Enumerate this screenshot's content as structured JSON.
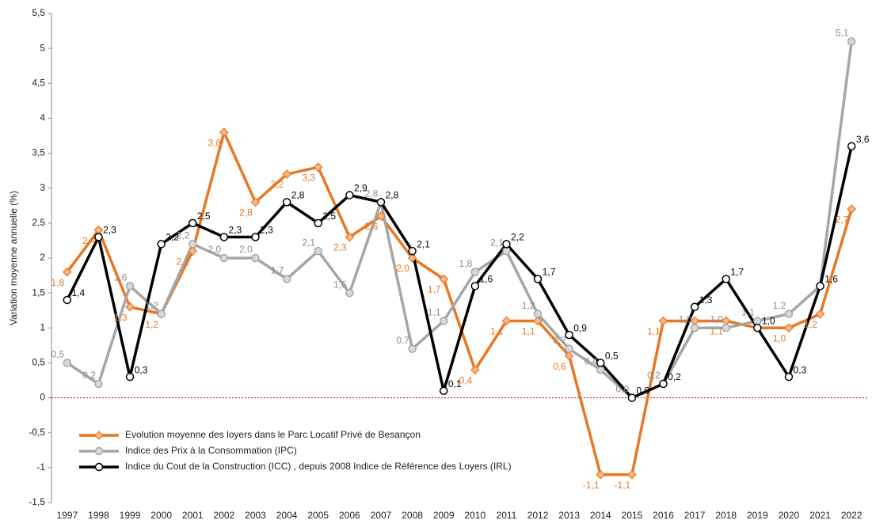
{
  "chart_data": {
    "type": "line",
    "ylabel": "Variation moyenne annuelle (%)",
    "categories": [
      "1997",
      "1998",
      "1999",
      "2000",
      "2001",
      "2002",
      "2003",
      "2004",
      "2005",
      "2006",
      "2007",
      "2008",
      "2009",
      "2010",
      "2011",
      "2012",
      "2013",
      "2014",
      "2015",
      "2016",
      "2017",
      "2018",
      "2019",
      "2020",
      "2021",
      "2022"
    ],
    "ylim": [
      -1.5,
      5.5
    ],
    "yticks": [
      {
        "value": -1.5,
        "label": "-1,5"
      },
      -1,
      {
        "value": -0.5,
        "label": "-0,5"
      },
      0,
      {
        "value": 0.5,
        "label": "0,5"
      },
      1,
      {
        "value": 1.5,
        "label": "1,5"
      },
      2,
      {
        "value": 2.5,
        "label": "2,5"
      },
      3,
      {
        "value": 3.5,
        "label": "3,5"
      },
      4,
      {
        "value": 4.5,
        "label": "4,5"
      },
      5,
      {
        "value": 5.5,
        "label": "5,5"
      }
    ],
    "zero_line_color": "#c00000",
    "series": [
      {
        "name": "Evolution moyenne des loyers dans le Parc Locatif Privé de Besançon",
        "color": "#e87722",
        "marker_fill": "#f9b88a",
        "marker": "diamond",
        "values": [
          1.8,
          2.4,
          1.3,
          1.2,
          2.1,
          3.8,
          2.8,
          3.2,
          3.3,
          2.3,
          2.6,
          2.0,
          1.7,
          0.4,
          1.1,
          1.1,
          0.6,
          -1.1,
          -1.1,
          1.1,
          1.1,
          1.1,
          1.0,
          1.0,
          1.2,
          2.7
        ],
        "value_labels": [
          "1,8",
          "2,4",
          "1,3",
          "1,2",
          "2,1",
          "3,8",
          "2,8",
          "3,2",
          "3,3",
          "2,3",
          "2,6",
          "2,0",
          "1,7",
          "0,4",
          "1,1",
          "1,1",
          "0,6",
          "-1,1",
          "-1,1",
          "1,1",
          null,
          "1,1",
          null,
          "1,0",
          "1,2",
          "2,7"
        ]
      },
      {
        "name": "Indice des Prix à la Consommation (IPC)",
        "color": "#a6a6a6",
        "marker_fill": "#d9d9d9",
        "marker": "circle",
        "values": [
          0.5,
          0.2,
          1.6,
          1.2,
          2.2,
          2.0,
          2.0,
          1.7,
          2.1,
          1.5,
          2.8,
          0.7,
          1.1,
          1.8,
          2.1,
          1.2,
          0.7,
          0.4,
          0.0,
          0.2,
          1.0,
          1.0,
          1.1,
          1.2,
          1.6,
          5.1
        ],
        "value_labels": [
          "0,5",
          "0,2",
          "1,6",
          "1,2",
          "2,2",
          "2,0",
          "2,0",
          "1,7",
          "2,1",
          "1,5",
          "2,8",
          "0,7",
          "1,1",
          "1,8",
          "2,1",
          "1,2",
          "0,7",
          "0,4",
          "0,0",
          "0,2",
          "1,0",
          "1,0",
          "1,1",
          "1,2",
          null,
          "5,1"
        ]
      },
      {
        "name": "Indice du Cout de la Construction (ICC) , depuis 2008 Indice de Référence des Loyers (IRL)",
        "color": "#000000",
        "marker_fill": "#ffffff",
        "marker": "circle",
        "values": [
          1.4,
          2.3,
          0.3,
          2.2,
          2.5,
          2.3,
          2.3,
          2.8,
          2.5,
          2.9,
          2.8,
          2.1,
          0.1,
          1.6,
          2.2,
          1.7,
          0.9,
          0.5,
          0.0,
          0.2,
          1.3,
          1.7,
          1.0,
          0.3,
          1.6,
          3.6
        ],
        "value_labels": [
          "1,4",
          "2,3",
          "0,3",
          "2,2",
          "2,5",
          "2,3",
          "2,3",
          "2,8",
          "2,5",
          "2,9",
          "2,8",
          "2,1",
          "0,1",
          "1,6",
          "2,2",
          "1,7",
          "0,9",
          "0,5",
          "0,0",
          "0,2",
          "1,3",
          "1,7",
          "1,0",
          "0,3",
          "1,6",
          "3,6"
        ]
      }
    ]
  }
}
